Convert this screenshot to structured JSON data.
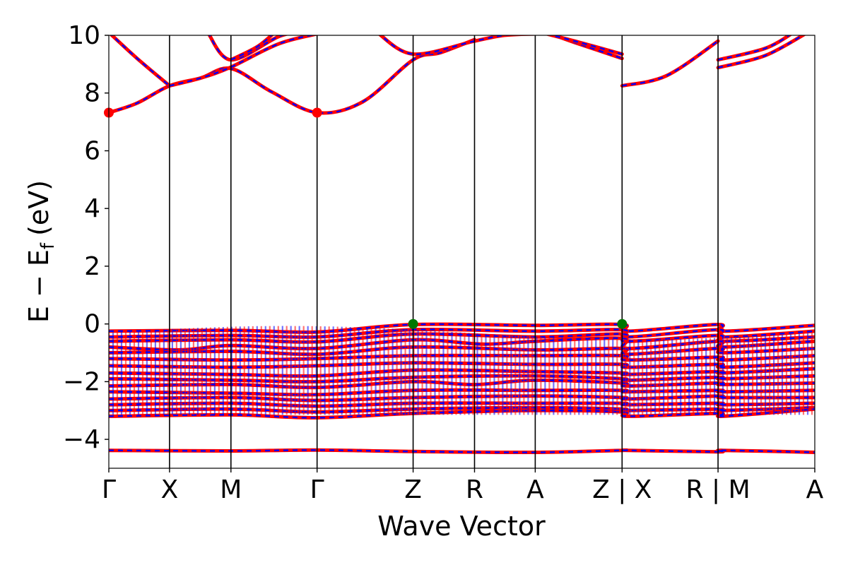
{
  "chart_data": {
    "type": "line",
    "title": "",
    "xlabel": "Wave Vector",
    "ylabel": "E − E",
    "ylabel_subscript": "f",
    "ylabel_unit": "(eV)",
    "ylim": [
      -5,
      10
    ],
    "yticks": [
      {
        "value": 10,
        "label": "10"
      },
      {
        "value": 8,
        "label": "8"
      },
      {
        "value": 6,
        "label": "6"
      },
      {
        "value": 4,
        "label": "4"
      },
      {
        "value": 2,
        "label": "2"
      },
      {
        "value": 0,
        "label": "0"
      },
      {
        "value": -2,
        "label": "−2"
      },
      {
        "value": -4,
        "label": "−4"
      }
    ],
    "kpath": {
      "total_length": 1000,
      "points": [
        {
          "position": 0,
          "label": "Γ",
          "separator": false
        },
        {
          "position": 86,
          "label": "X",
          "separator": false
        },
        {
          "position": 173,
          "label": "M",
          "separator": false
        },
        {
          "position": 295,
          "label": "Γ",
          "separator": false
        },
        {
          "position": 431,
          "label": "Z",
          "separator": false
        },
        {
          "position": 518,
          "label": "R",
          "separator": false
        },
        {
          "position": 604,
          "label": "A",
          "separator": false
        },
        {
          "position": 727,
          "label": "Z | X",
          "separator": true
        },
        {
          "position": 863,
          "label": "R | M",
          "separator": true
        },
        {
          "position": 1000,
          "label": "A",
          "separator": false
        }
      ]
    },
    "series_colors": {
      "spin_up": "#ff0000",
      "spin_down": "#0000ff"
    },
    "conduction_bands": [
      [
        [
          0,
          10.1
        ],
        [
          40,
          9.2
        ],
        [
          86,
          8.25
        ]
      ],
      [
        [
          0,
          7.32
        ],
        [
          40,
          7.65
        ],
        [
          86,
          8.25
        ],
        [
          130,
          8.52
        ],
        [
          173,
          8.85
        ],
        [
          230,
          8.05
        ],
        [
          295,
          7.32
        ],
        [
          360,
          7.7
        ],
        [
          431,
          9.15
        ],
        [
          470,
          9.4
        ],
        [
          518,
          9.85
        ]
      ],
      [
        [
          86,
          8.25
        ],
        [
          130,
          8.52
        ],
        [
          173,
          8.9
        ],
        [
          240,
          9.7
        ],
        [
          295,
          10.05
        ]
      ],
      [
        [
          140,
          10.1
        ],
        [
          173,
          9.15
        ],
        [
          240,
          9.95
        ],
        [
          270,
          10.1
        ]
      ],
      [
        [
          173,
          9.15
        ],
        [
          210,
          9.6
        ],
        [
          235,
          10.1
        ]
      ],
      [
        [
          380,
          10.1
        ],
        [
          431,
          9.35
        ],
        [
          518,
          9.8
        ],
        [
          560,
          10.0
        ],
        [
          604,
          10.05
        ]
      ],
      [
        [
          620,
          10.1
        ],
        [
          660,
          9.75
        ],
        [
          727,
          9.2
        ]
      ],
      [
        [
          620,
          10.05
        ],
        [
          660,
          9.8
        ],
        [
          727,
          9.35
        ]
      ],
      [
        [
          727,
          8.25
        ],
        [
          790,
          8.6
        ],
        [
          863,
          9.8
        ]
      ],
      [
        [
          863,
          8.88
        ],
        [
          930,
          9.3
        ],
        [
          990,
          10.1
        ]
      ],
      [
        [
          863,
          9.15
        ],
        [
          930,
          9.55
        ],
        [
          970,
          10.1
        ]
      ]
    ],
    "valence_bands": [
      [
        [
          0,
          -0.25
        ],
        [
          173,
          -0.22
        ],
        [
          295,
          -0.28
        ],
        [
          431,
          -0.02
        ],
        [
          604,
          -0.05
        ],
        [
          727,
          -0.02
        ],
        [
          735,
          -0.25
        ],
        [
          863,
          -0.02
        ],
        [
          870,
          -0.25
        ],
        [
          1000,
          -0.05
        ]
      ],
      [
        [
          0,
          -0.45
        ],
        [
          173,
          -0.4
        ],
        [
          295,
          -0.45
        ],
        [
          431,
          -0.2
        ],
        [
          604,
          -0.25
        ],
        [
          727,
          -0.2
        ],
        [
          735,
          -0.45
        ],
        [
          863,
          -0.2
        ],
        [
          870,
          -0.45
        ],
        [
          1000,
          -0.25
        ]
      ],
      [
        [
          0,
          -0.6
        ],
        [
          173,
          -0.55
        ],
        [
          295,
          -0.62
        ],
        [
          431,
          -0.35
        ],
        [
          604,
          -0.45
        ],
        [
          727,
          -0.35
        ],
        [
          735,
          -0.6
        ],
        [
          863,
          -0.4
        ],
        [
          870,
          -0.6
        ],
        [
          1000,
          -0.45
        ]
      ],
      [
        [
          0,
          -0.8
        ],
        [
          100,
          -0.9
        ],
        [
          173,
          -0.75
        ],
        [
          295,
          -0.85
        ],
        [
          431,
          -0.55
        ],
        [
          530,
          -0.7
        ],
        [
          604,
          -0.6
        ],
        [
          727,
          -0.5
        ],
        [
          735,
          -0.85
        ],
        [
          863,
          -0.6
        ],
        [
          870,
          -0.8
        ],
        [
          1000,
          -0.6
        ]
      ],
      [
        [
          0,
          -1.0
        ],
        [
          173,
          -0.95
        ],
        [
          295,
          -1.05
        ],
        [
          431,
          -0.8
        ],
        [
          604,
          -0.9
        ],
        [
          727,
          -0.85
        ],
        [
          735,
          -1.05
        ],
        [
          863,
          -0.85
        ],
        [
          870,
          -1.0
        ],
        [
          1000,
          -0.85
        ]
      ],
      [
        [
          0,
          -1.2
        ],
        [
          173,
          -1.25
        ],
        [
          295,
          -1.2
        ],
        [
          431,
          -1.1
        ],
        [
          604,
          -1.1
        ],
        [
          727,
          -1.1
        ],
        [
          735,
          -1.25
        ],
        [
          863,
          -1.15
        ],
        [
          870,
          -1.25
        ],
        [
          1000,
          -1.1
        ]
      ],
      [
        [
          0,
          -1.45
        ],
        [
          173,
          -1.5
        ],
        [
          295,
          -1.45
        ],
        [
          431,
          -1.35
        ],
        [
          604,
          -1.4
        ],
        [
          727,
          -1.4
        ],
        [
          735,
          -1.5
        ],
        [
          863,
          -1.4
        ],
        [
          870,
          -1.5
        ],
        [
          1000,
          -1.35
        ]
      ],
      [
        [
          0,
          -1.7
        ],
        [
          173,
          -1.75
        ],
        [
          295,
          -1.8
        ],
        [
          431,
          -1.6
        ],
        [
          604,
          -1.65
        ],
        [
          727,
          -1.7
        ],
        [
          735,
          -1.75
        ],
        [
          863,
          -1.65
        ],
        [
          870,
          -1.7
        ],
        [
          1000,
          -1.55
        ]
      ],
      [
        [
          0,
          -1.9
        ],
        [
          173,
          -1.95
        ],
        [
          295,
          -2.0
        ],
        [
          431,
          -1.85
        ],
        [
          604,
          -1.8
        ],
        [
          727,
          -1.9
        ],
        [
          735,
          -1.95
        ],
        [
          863,
          -1.85
        ],
        [
          870,
          -1.9
        ],
        [
          1000,
          -1.8
        ]
      ],
      [
        [
          0,
          -2.15
        ],
        [
          173,
          -2.1
        ],
        [
          295,
          -2.2
        ],
        [
          431,
          -2.0
        ],
        [
          518,
          -2.1
        ],
        [
          604,
          -1.95
        ],
        [
          727,
          -2.05
        ],
        [
          735,
          -2.15
        ],
        [
          863,
          -2.05
        ],
        [
          870,
          -2.1
        ],
        [
          1000,
          -2.05
        ]
      ],
      [
        [
          0,
          -2.35
        ],
        [
          173,
          -2.4
        ],
        [
          295,
          -2.45
        ],
        [
          431,
          -2.3
        ],
        [
          604,
          -2.3
        ],
        [
          727,
          -2.3
        ],
        [
          735,
          -2.35
        ],
        [
          863,
          -2.3
        ],
        [
          870,
          -2.35
        ],
        [
          1000,
          -2.3
        ]
      ],
      [
        [
          0,
          -2.6
        ],
        [
          173,
          -2.55
        ],
        [
          295,
          -2.65
        ],
        [
          431,
          -2.55
        ],
        [
          604,
          -2.5
        ],
        [
          727,
          -2.55
        ],
        [
          735,
          -2.6
        ],
        [
          863,
          -2.5
        ],
        [
          870,
          -2.55
        ],
        [
          1000,
          -2.55
        ]
      ],
      [
        [
          0,
          -2.8
        ],
        [
          173,
          -2.75
        ],
        [
          295,
          -2.85
        ],
        [
          431,
          -2.75
        ],
        [
          604,
          -2.75
        ],
        [
          727,
          -2.75
        ],
        [
          735,
          -2.8
        ],
        [
          863,
          -2.75
        ],
        [
          870,
          -2.8
        ],
        [
          1000,
          -2.75
        ]
      ],
      [
        [
          0,
          -3.0
        ],
        [
          173,
          -2.95
        ],
        [
          295,
          -3.05
        ],
        [
          431,
          -2.95
        ],
        [
          604,
          -2.9
        ],
        [
          727,
          -2.95
        ],
        [
          735,
          -3.0
        ],
        [
          863,
          -2.95
        ],
        [
          870,
          -3.0
        ],
        [
          1000,
          -2.9
        ]
      ],
      [
        [
          0,
          -3.2
        ],
        [
          173,
          -3.15
        ],
        [
          295,
          -3.25
        ],
        [
          431,
          -3.1
        ],
        [
          604,
          -3.0
        ],
        [
          727,
          -3.05
        ],
        [
          735,
          -3.2
        ],
        [
          863,
          -3.1
        ],
        [
          870,
          -3.2
        ],
        [
          1000,
          -2.95
        ]
      ],
      [
        [
          0,
          -4.38
        ],
        [
          173,
          -4.4
        ],
        [
          295,
          -4.37
        ],
        [
          431,
          -4.42
        ],
        [
          604,
          -4.45
        ],
        [
          727,
          -4.38
        ],
        [
          735,
          -4.38
        ],
        [
          863,
          -4.43
        ],
        [
          870,
          -4.38
        ],
        [
          1000,
          -4.45
        ]
      ]
    ],
    "markers": [
      {
        "x": 0,
        "y": 7.32,
        "color": "#ff0000",
        "kind": "CBM"
      },
      {
        "x": 295,
        "y": 7.32,
        "color": "#ff0000",
        "kind": "CBM"
      },
      {
        "x": 431,
        "y": 0.0,
        "color": "#007700",
        "kind": "VBM"
      },
      {
        "x": 727,
        "y": 0.0,
        "color": "#007700",
        "kind": "VBM"
      }
    ]
  }
}
